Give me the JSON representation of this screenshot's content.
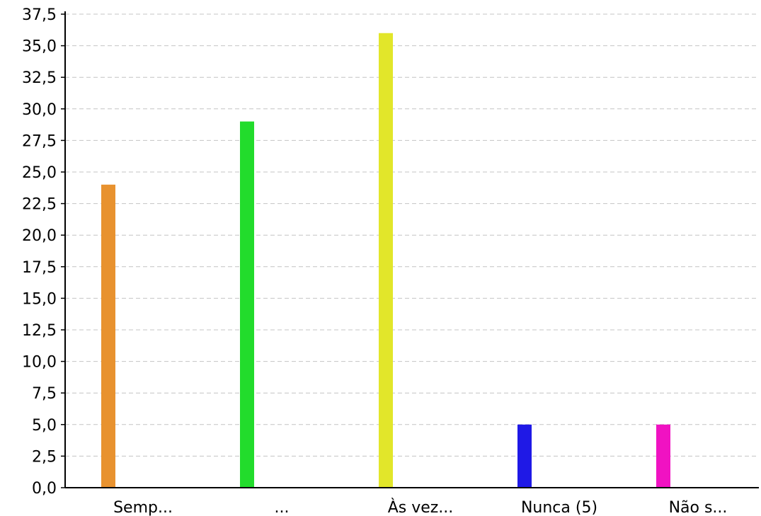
{
  "chart_data": {
    "type": "bar",
    "title": "",
    "xlabel": "",
    "ylabel": "",
    "categories": [
      "Semp...",
      "...",
      "Às vez...",
      "Nunca (5)",
      "Não s..."
    ],
    "values": [
      24,
      29,
      36,
      5,
      5
    ],
    "colors": [
      "#e8922f",
      "#22dc2c",
      "#e2e62a",
      "#1f19e6",
      "#f012c2"
    ],
    "ylim": [
      0,
      37.5
    ],
    "yticks": [
      0,
      2.5,
      5,
      7.5,
      10,
      12.5,
      15,
      17.5,
      20,
      22.5,
      25,
      27.5,
      30,
      32.5,
      35,
      37.5
    ],
    "ytick_labels": [
      "0,0",
      "2,5",
      "5,0",
      "7,5",
      "10,0",
      "12,5",
      "15,0",
      "17,5",
      "20,0",
      "22,5",
      "25,0",
      "27,5",
      "30,0",
      "32,5",
      "35,0",
      "37,5"
    ],
    "grid": true,
    "legend": "none"
  }
}
